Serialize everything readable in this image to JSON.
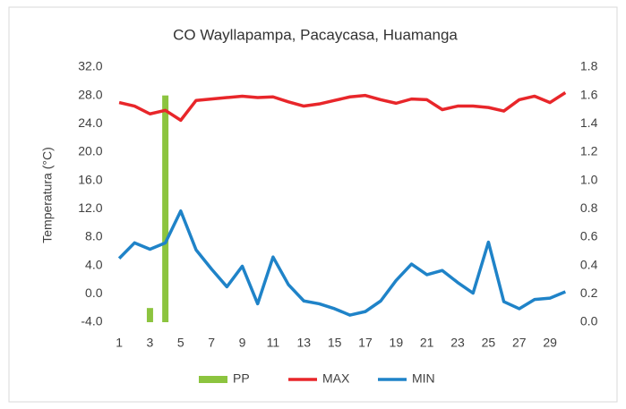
{
  "chart_data": {
    "type": "line",
    "title": "CO Wayllapampa, Pacaycasa, Huamanga",
    "ylabel": "Temperatura   (°C)",
    "categories": [
      "1",
      null,
      "3",
      null,
      "5",
      null,
      "7",
      null,
      "9",
      null,
      "11",
      null,
      "13",
      null,
      "15",
      null,
      "17",
      null,
      "19",
      null,
      "21",
      null,
      "23",
      null,
      "25",
      null,
      "27",
      null,
      "29",
      null
    ],
    "series": [
      {
        "name": "PP",
        "type": "bar",
        "axis": "y2",
        "color": "#8cc43f",
        "values": [
          0,
          0,
          0.1,
          1.6,
          0,
          0,
          0,
          0,
          0,
          0,
          0,
          0,
          0,
          0,
          0,
          0,
          0,
          0,
          0,
          0,
          0,
          0,
          0,
          0,
          0,
          0,
          0,
          0,
          0,
          0
        ]
      },
      {
        "name": "MAX",
        "type": "line",
        "color": "#e8262a",
        "values": [
          27.0,
          26.5,
          25.4,
          25.9,
          24.5,
          27.3,
          27.5,
          27.7,
          27.9,
          27.7,
          27.8,
          27.1,
          26.5,
          26.8,
          27.3,
          27.8,
          28.0,
          27.4,
          26.9,
          27.5,
          27.4,
          26.0,
          26.5,
          26.5,
          26.3,
          25.8,
          27.4,
          27.9,
          27.0,
          28.4
        ]
      },
      {
        "name": "MIN",
        "type": "line",
        "color": "#1f83c8",
        "values": [
          5.0,
          7.2,
          6.3,
          7.2,
          11.7,
          6.2,
          3.5,
          1.0,
          3.9,
          -1.4,
          5.2,
          1.3,
          -1.0,
          -1.4,
          -2.1,
          -3.0,
          -2.5,
          -1.0,
          1.9,
          4.2,
          2.7,
          3.3,
          1.6,
          0.1,
          7.3,
          -1.1,
          -2.1,
          -0.8,
          -0.6,
          0.3
        ]
      }
    ],
    "ylim": [
      -4,
      32
    ],
    "yticks": [
      {
        "value": -4,
        "label": "-4.0"
      },
      {
        "value": 0,
        "label": "0.0"
      },
      {
        "value": 4,
        "label": "4.0"
      },
      {
        "value": 8,
        "label": "8.0"
      },
      {
        "value": 12,
        "label": "12.0"
      },
      {
        "value": 16,
        "label": "16.0"
      },
      {
        "value": 20,
        "label": "20.0"
      },
      {
        "value": 24,
        "label": "24.0"
      },
      {
        "value": 28,
        "label": "28.0"
      },
      {
        "value": 32,
        "label": "32.0"
      }
    ],
    "y2lim": [
      0,
      1.8
    ],
    "y2ticks": [
      {
        "value": 0,
        "label": "0.0"
      },
      {
        "value": 0.2,
        "label": "0.2"
      },
      {
        "value": 0.4,
        "label": "0.4"
      },
      {
        "value": 0.6,
        "label": "0.6"
      },
      {
        "value": 0.8,
        "label": "0.8"
      },
      {
        "value": 1.0,
        "label": "1.0"
      },
      {
        "value": 1.2,
        "label": "1.2"
      },
      {
        "value": 1.4,
        "label": "1.4"
      },
      {
        "value": 1.6,
        "label": "1.6"
      },
      {
        "value": 1.8,
        "label": "1.8"
      }
    ],
    "grid": false,
    "legend": "bottom"
  }
}
